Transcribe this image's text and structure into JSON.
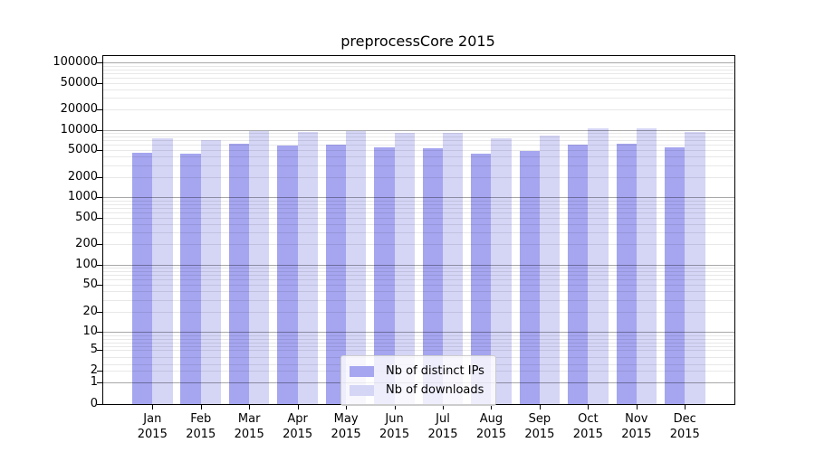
{
  "title": "preprocessCore 2015",
  "legend": {
    "items": [
      {
        "label": "Nb of distinct IPs",
        "color": "#a5a5f0"
      },
      {
        "label": "Nb of downloads",
        "color": "#d5d5f6"
      }
    ]
  },
  "y_axis": {
    "tick_labels": [
      "0",
      "1",
      "2",
      "5",
      "10",
      "20",
      "50",
      "100",
      "200",
      "500",
      "1000",
      "2000",
      "5000",
      "10000",
      "20000",
      "50000",
      "100000"
    ]
  },
  "x_axis": {
    "tick_labels": [
      {
        "line1": "Jan",
        "line2": "2015"
      },
      {
        "line1": "Feb",
        "line2": "2015"
      },
      {
        "line1": "Mar",
        "line2": "2015"
      },
      {
        "line1": "Apr",
        "line2": "2015"
      },
      {
        "line1": "May",
        "line2": "2015"
      },
      {
        "line1": "Jun",
        "line2": "2015"
      },
      {
        "line1": "Jul",
        "line2": "2015"
      },
      {
        "line1": "Aug",
        "line2": "2015"
      },
      {
        "line1": "Sep",
        "line2": "2015"
      },
      {
        "line1": "Oct",
        "line2": "2015"
      },
      {
        "line1": "Nov",
        "line2": "2015"
      },
      {
        "line1": "Dec",
        "line2": "2015"
      }
    ]
  },
  "chart_data": {
    "type": "bar",
    "title": "preprocessCore 2015",
    "categories": [
      "Jan 2015",
      "Feb 2015",
      "Mar 2015",
      "Apr 2015",
      "May 2015",
      "Jun 2015",
      "Jul 2015",
      "Aug 2015",
      "Sep 2015",
      "Oct 2015",
      "Nov 2015",
      "Dec 2015"
    ],
    "series": [
      {
        "name": "Nb of distinct IPs",
        "color": "#a5a5f0",
        "values": [
          4550,
          4400,
          6250,
          5930,
          5980,
          5470,
          5310,
          4450,
          4880,
          6000,
          6250,
          5520
        ]
      },
      {
        "name": "Nb of downloads",
        "color": "#d5d5f6",
        "values": [
          7500,
          7150,
          9550,
          9330,
          9550,
          9140,
          9100,
          7500,
          8260,
          10540,
          10640,
          9430
        ]
      }
    ],
    "yscale": "symlog",
    "ylim": [
      0,
      100000
    ],
    "y_ticks": [
      0,
      1,
      2,
      5,
      10,
      20,
      50,
      100,
      200,
      500,
      1000,
      2000,
      5000,
      10000,
      20000,
      50000,
      100000
    ],
    "grid": true,
    "grid_minor": true,
    "legend_position": "lower center",
    "xlabel": "",
    "ylabel": ""
  }
}
